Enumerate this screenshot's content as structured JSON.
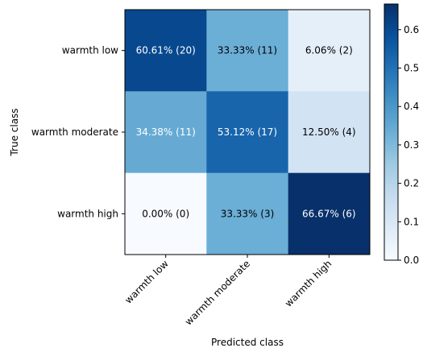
{
  "chart_data": {
    "type": "heatmap",
    "title": "",
    "xlabel": "Predicted class",
    "ylabel": "True class",
    "x_categories": [
      "warmth low",
      "warmth moderate",
      "warmth high"
    ],
    "y_categories": [
      "warmth low",
      "warmth moderate",
      "warmth high"
    ],
    "values": [
      [
        0.6061,
        0.3333,
        0.0606
      ],
      [
        0.3438,
        0.5312,
        0.125
      ],
      [
        0.0,
        0.3333,
        0.6667
      ]
    ],
    "cell_labels": [
      [
        "60.61% (20)",
        "33.33% (11)",
        "6.06% (2)"
      ],
      [
        "34.38% (11)",
        "53.12% (17)",
        "12.50% (4)"
      ],
      [
        "0.00% (0)",
        "33.33% (3)",
        "66.67% (6)"
      ]
    ],
    "colormap": "Blues",
    "colorbar": {
      "vmin": 0.0,
      "vmax": 0.6667,
      "ticks": [
        0.0,
        0.1,
        0.2,
        0.3,
        0.4,
        0.5,
        0.6
      ],
      "tick_labels": [
        "0.0",
        "0.1",
        "0.2",
        "0.3",
        "0.4",
        "0.5",
        "0.6"
      ]
    }
  }
}
